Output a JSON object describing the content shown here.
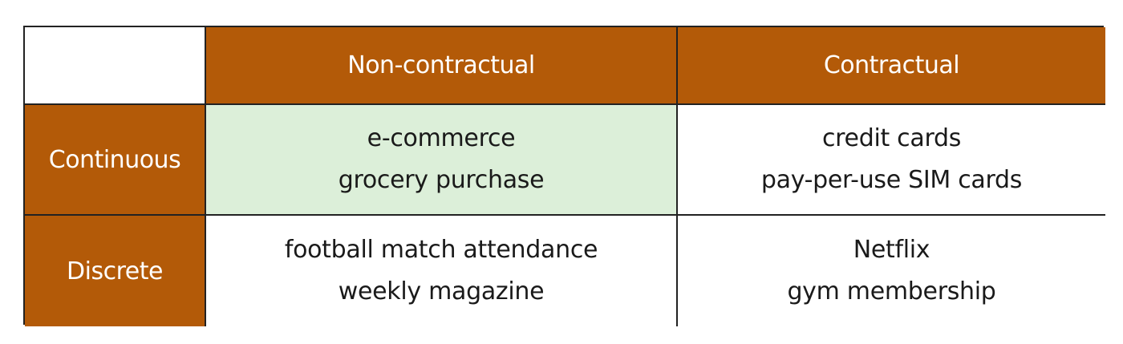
{
  "colors": {
    "header_fill": "#B35A08",
    "highlight_fill": "#DCEFD9",
    "plain_fill": "#FFFFFF",
    "border": "#222222"
  },
  "table": {
    "columns": [
      "",
      "Non-contractual",
      "Contractual"
    ],
    "rows": [
      {
        "label": "Continuous",
        "cells": [
          {
            "lines": [
              "e-commerce",
              "grocery purchase"
            ],
            "highlighted": true
          },
          {
            "lines": [
              "credit cards",
              "pay-per-use SIM cards"
            ],
            "highlighted": false
          }
        ]
      },
      {
        "label": "Discrete",
        "cells": [
          {
            "lines": [
              "football match attendance",
              "weekly magazine"
            ],
            "highlighted": false
          },
          {
            "lines": [
              "Netflix",
              "gym membership"
            ],
            "highlighted": false
          }
        ]
      }
    ]
  }
}
